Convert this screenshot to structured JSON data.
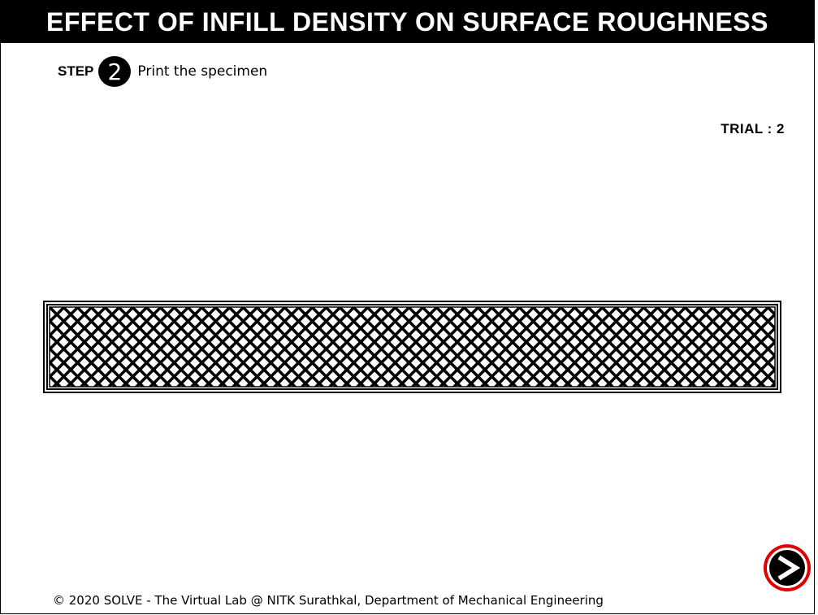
{
  "header": {
    "title": "EFFECT OF INFILL DENSITY ON SURFACE ROUGHNESS"
  },
  "step": {
    "label": "STEP",
    "number": "2",
    "instruction": "Print the specimen"
  },
  "trial": {
    "text": "TRIAL : 2"
  },
  "specimen": {
    "pattern": "diagonal-crosshatch-infill",
    "fill_color": "#000000",
    "background_color": "#ffffff"
  },
  "navigation": {
    "next_icon": "right-arrow-icon",
    "ring_color": "#e00000"
  },
  "footer": {
    "copyright": "© 2020 SOLVE - The Virtual Lab @ NITK Surathkal, Department of Mechanical Engineering"
  }
}
